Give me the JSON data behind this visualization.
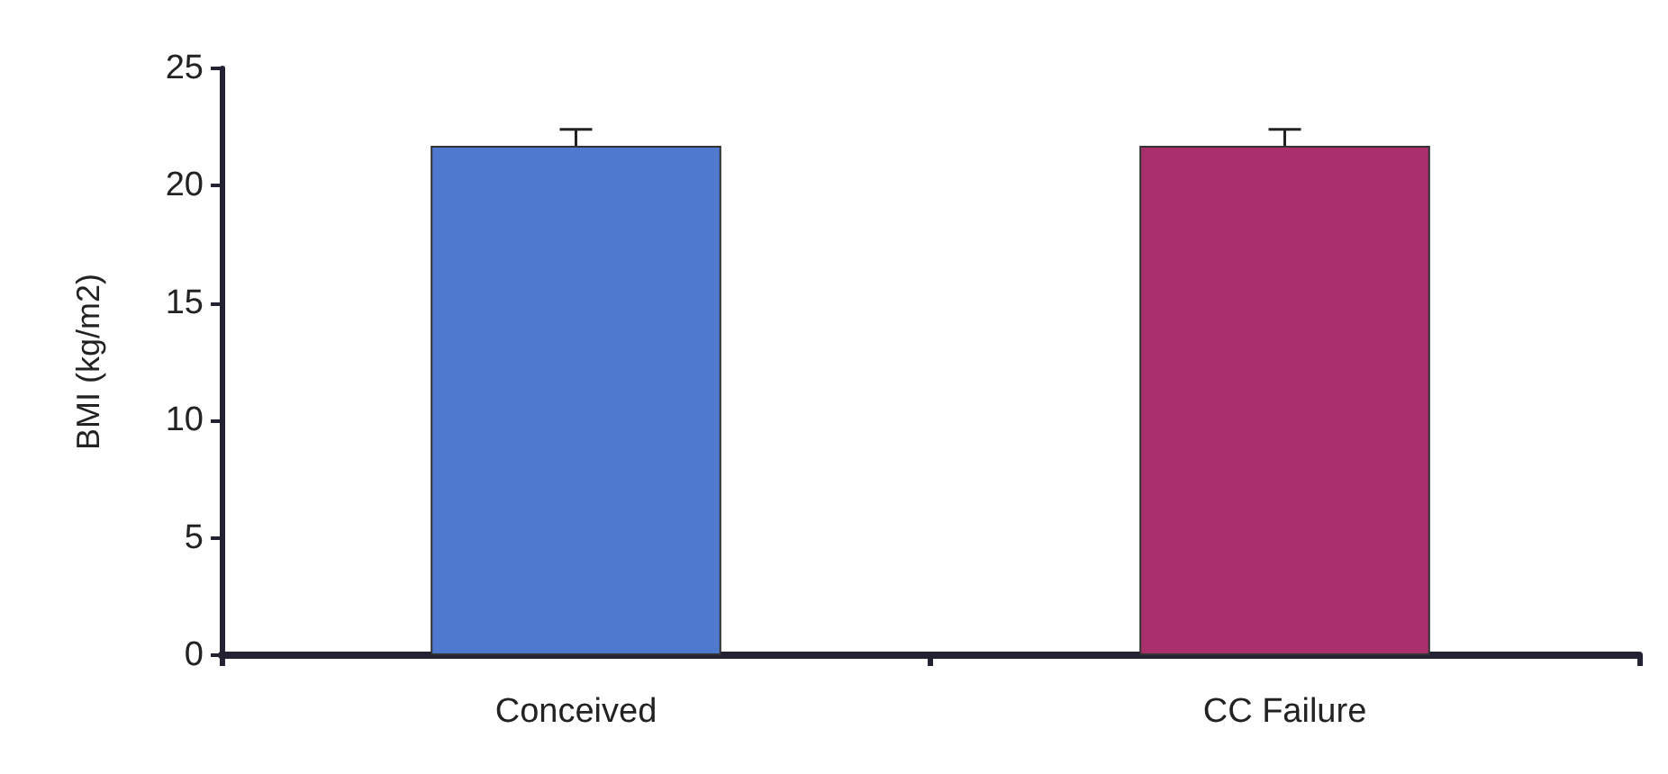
{
  "chart_data": {
    "type": "bar",
    "ylabel": "BMI (kg/m2)",
    "categories": [
      "Conceived",
      "CC Failure"
    ],
    "values": [
      21.7,
      21.7
    ],
    "colors": [
      "#4f78cf",
      "#a9306c"
    ],
    "errors": [
      [
        21.7,
        22.4
      ],
      [
        21.7,
        22.4
      ]
    ],
    "ylim": [
      0,
      25
    ],
    "yticks": [
      0,
      5,
      10,
      15,
      20,
      25
    ],
    "grid": false
  }
}
